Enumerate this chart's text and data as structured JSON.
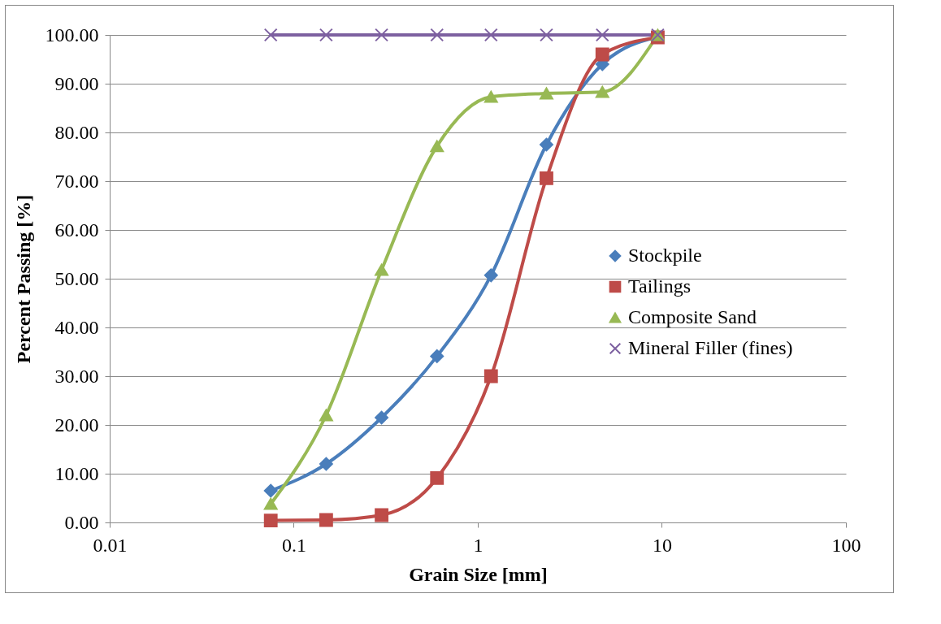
{
  "chart_data": {
    "type": "line",
    "xlabel": "Grain Size [mm]",
    "ylabel": "Percent Passing [%]",
    "log": "x",
    "grid": "y",
    "legend": "right",
    "xlim": [
      0.01,
      100
    ],
    "xticks": [
      0.01,
      0.1,
      1,
      10,
      100
    ],
    "ylim": [
      0,
      100
    ],
    "yticks": [
      {
        "value": 0,
        "label": "0.00"
      },
      {
        "value": 10,
        "label": "10.00"
      },
      {
        "value": 20,
        "label": "20.00"
      },
      {
        "value": 30,
        "label": "30.00"
      },
      {
        "value": 40,
        "label": "40.00"
      },
      {
        "value": 50,
        "label": "50.00"
      },
      {
        "value": 60,
        "label": "60.00"
      },
      {
        "value": 70,
        "label": "70.00"
      },
      {
        "value": 80,
        "label": "80.00"
      },
      {
        "value": 90,
        "label": "90.00"
      },
      {
        "value": 100,
        "label": "100.00"
      }
    ],
    "x": [
      0.075,
      0.15,
      0.3,
      0.6,
      1.18,
      2.36,
      4.75,
      9.5
    ],
    "series": [
      {
        "name": "Stockpile",
        "color": "#4a7ebb",
        "marker": "diamond",
        "values": [
          6.5,
          12,
          21.5,
          34.1,
          50.7,
          77.5,
          94,
          99.6
        ]
      },
      {
        "name": "Tailings",
        "color": "#be4b48",
        "marker": "square",
        "values": [
          0.4,
          0.5,
          1.5,
          9.1,
          30,
          70.6,
          96,
          99.5
        ]
      },
      {
        "name": "Composite Sand",
        "color": "#98b954",
        "marker": "triangle",
        "values": [
          3.8,
          22,
          51.8,
          77.2,
          87.3,
          88,
          88.3,
          100
        ]
      },
      {
        "name": "Mineral Filler (fines)",
        "color": "#7d60a0",
        "marker": "cross",
        "values": [
          100,
          100,
          100,
          100,
          100,
          100,
          100,
          100
        ]
      }
    ]
  }
}
